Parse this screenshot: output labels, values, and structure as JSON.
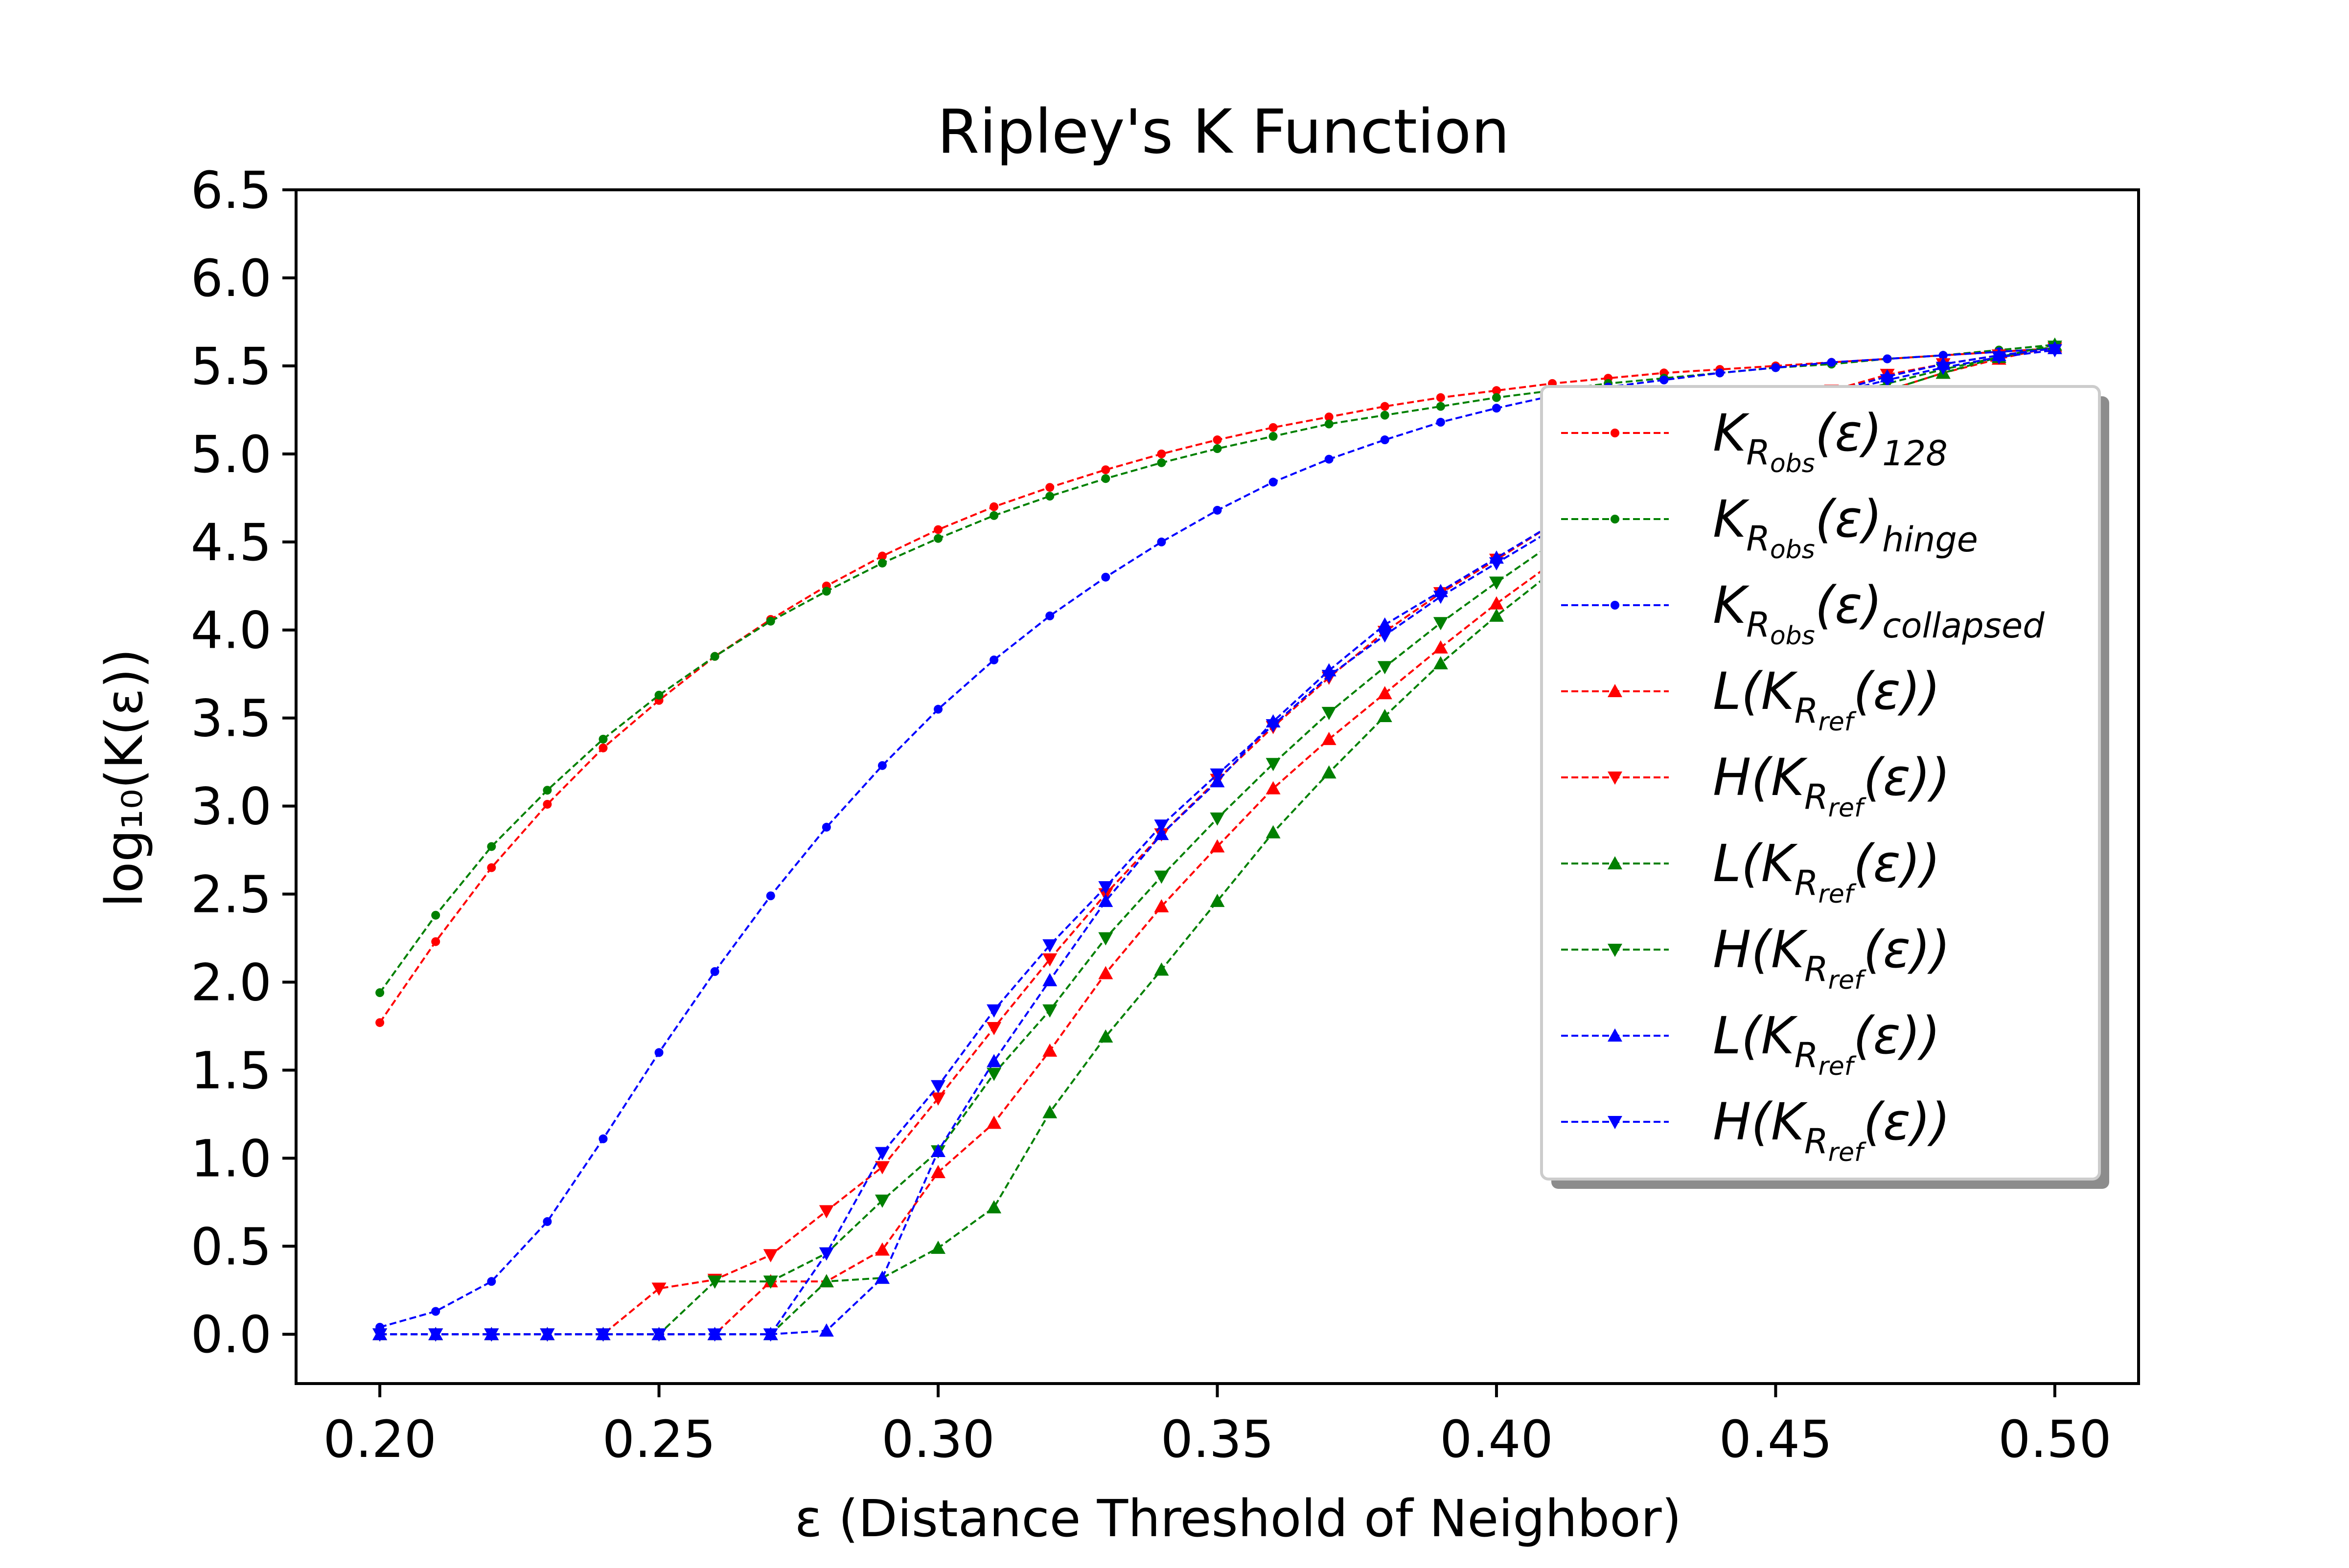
{
  "chart_data": {
    "type": "line",
    "title": "Ripley's K Function",
    "xlabel": "ε (Distance Threshold of Neighbor)",
    "ylabel": "log₁₀(K(ε))",
    "xlim": [
      0.185,
      0.515
    ],
    "ylim": [
      -0.28,
      6.5
    ],
    "xticks": [
      "0.20",
      "0.25",
      "0.30",
      "0.35",
      "0.40",
      "0.45",
      "0.50"
    ],
    "yticks": [
      "0.0",
      "0.5",
      "1.0",
      "1.5",
      "2.0",
      "2.5",
      "3.0",
      "3.5",
      "4.0",
      "4.5",
      "5.0",
      "5.5",
      "6.0",
      "6.5"
    ],
    "grid": false,
    "legend_position": "right",
    "x": [
      0.2,
      0.21,
      0.22,
      0.23,
      0.24,
      0.25,
      0.26,
      0.27,
      0.28,
      0.29,
      0.3,
      0.31,
      0.32,
      0.33,
      0.34,
      0.35,
      0.36,
      0.37,
      0.38,
      0.39,
      0.4,
      0.41,
      0.42,
      0.43,
      0.44,
      0.45,
      0.46,
      0.47,
      0.48,
      0.49,
      0.5
    ],
    "series": [
      {
        "name": "K_Robs(ε)_128",
        "color": "#ff0000",
        "marker": "dot",
        "legend": {
          "main": "K",
          "sub1": "R",
          "sub2": "obs",
          "tail": "(ε)",
          "sub3": "128"
        },
        "values": [
          1.77,
          2.23,
          2.65,
          3.01,
          3.33,
          3.6,
          3.85,
          4.06,
          4.25,
          4.42,
          4.57,
          4.7,
          4.81,
          4.91,
          5.0,
          5.08,
          5.15,
          5.21,
          5.27,
          5.32,
          5.36,
          5.4,
          5.43,
          5.46,
          5.48,
          5.5,
          5.52,
          5.54,
          5.56,
          5.58,
          5.6
        ]
      },
      {
        "name": "K_Robs(ε)_hinge",
        "color": "#008000",
        "marker": "dot",
        "legend": {
          "main": "K",
          "sub1": "R",
          "sub2": "obs",
          "tail": "(ε)",
          "sub3": "hinge"
        },
        "values": [
          1.94,
          2.38,
          2.77,
          3.09,
          3.38,
          3.63,
          3.85,
          4.05,
          4.22,
          4.38,
          4.52,
          4.65,
          4.76,
          4.86,
          4.95,
          5.03,
          5.1,
          5.17,
          5.22,
          5.27,
          5.32,
          5.36,
          5.4,
          5.43,
          5.46,
          5.49,
          5.51,
          5.54,
          5.56,
          5.59,
          5.62
        ]
      },
      {
        "name": "K_Robs(ε)_collapsed",
        "color": "#0000ff",
        "marker": "dot",
        "legend": {
          "main": "K",
          "sub1": "R",
          "sub2": "obs",
          "tail": "(ε)",
          "sub3": "collapsed"
        },
        "values": [
          0.04,
          0.13,
          0.3,
          0.64,
          1.11,
          1.6,
          2.06,
          2.49,
          2.88,
          3.23,
          3.55,
          3.83,
          4.08,
          4.3,
          4.5,
          4.68,
          4.84,
          4.97,
          5.08,
          5.18,
          5.26,
          5.33,
          5.38,
          5.42,
          5.46,
          5.49,
          5.52,
          5.54,
          5.56,
          5.58,
          5.6
        ]
      },
      {
        "name": "L(K_Rref(ε))",
        "color": "#ff0000",
        "marker": "tri-up",
        "legend": {
          "main": "L(K",
          "sub1": "R",
          "sub2": "ref",
          "tail": "(ε))",
          "sub3": ""
        },
        "values": [
          0.0,
          0.0,
          0.0,
          0.0,
          0.0,
          0.0,
          0.0,
          0.3,
          0.3,
          0.48,
          0.92,
          1.2,
          1.61,
          2.05,
          2.43,
          2.77,
          3.1,
          3.38,
          3.64,
          3.9,
          4.15,
          4.38,
          4.6,
          4.8,
          4.98,
          5.13,
          5.26,
          5.36,
          5.46,
          5.54,
          5.61
        ]
      },
      {
        "name": "H(K_Rref(ε))",
        "color": "#ff0000",
        "marker": "tri-down",
        "legend": {
          "main": "H(K",
          "sub1": "R",
          "sub2": "ref",
          "tail": "(ε))",
          "sub3": ""
        },
        "values": [
          0.0,
          0.0,
          0.0,
          0.0,
          0.0,
          0.26,
          0.31,
          0.45,
          0.7,
          0.95,
          1.34,
          1.74,
          2.13,
          2.5,
          2.84,
          3.15,
          3.45,
          3.73,
          3.99,
          4.21,
          4.4,
          4.6,
          4.8,
          4.98,
          5.13,
          5.26,
          5.36,
          5.45,
          5.51,
          5.56,
          5.6
        ]
      },
      {
        "name": "L(K_Rref(ε))",
        "color": "#008000",
        "marker": "tri-up",
        "legend": {
          "main": "L(K",
          "sub1": "R",
          "sub2": "ref",
          "tail": "(ε))",
          "sub3": ""
        },
        "values": [
          0.0,
          0.0,
          0.0,
          0.0,
          0.0,
          0.0,
          0.0,
          0.0,
          0.3,
          0.32,
          0.49,
          0.72,
          1.26,
          1.69,
          2.07,
          2.46,
          2.85,
          3.19,
          3.51,
          3.81,
          4.08,
          4.33,
          4.56,
          4.77,
          4.95,
          5.11,
          5.25,
          5.36,
          5.46,
          5.55,
          5.62
        ]
      },
      {
        "name": "H(K_Rref(ε))",
        "color": "#008000",
        "marker": "tri-down",
        "legend": {
          "main": "H(K",
          "sub1": "R",
          "sub2": "ref",
          "tail": "(ε))",
          "sub3": ""
        },
        "values": [
          0.0,
          0.0,
          0.0,
          0.0,
          0.0,
          0.0,
          0.3,
          0.3,
          0.46,
          0.76,
          1.04,
          1.48,
          1.84,
          2.25,
          2.6,
          2.93,
          3.24,
          3.53,
          3.79,
          4.04,
          4.27,
          4.49,
          4.7,
          4.89,
          5.05,
          5.19,
          5.31,
          5.4,
          5.48,
          5.55,
          5.61
        ]
      },
      {
        "name": "L(K_Rref(ε))",
        "color": "#0000ff",
        "marker": "tri-up",
        "legend": {
          "main": "L(K",
          "sub1": "R",
          "sub2": "ref",
          "tail": "(ε))",
          "sub3": ""
        },
        "values": [
          0.0,
          0.0,
          0.0,
          0.0,
          0.0,
          0.0,
          0.0,
          0.0,
          0.02,
          0.32,
          1.04,
          1.55,
          2.01,
          2.46,
          2.84,
          3.14,
          3.48,
          3.77,
          4.03,
          4.22,
          4.41,
          4.6,
          4.8,
          4.98,
          5.13,
          5.25,
          5.35,
          5.44,
          5.51,
          5.56,
          5.6
        ]
      },
      {
        "name": "H(K_Rref(ε))",
        "color": "#0000ff",
        "marker": "tri-down",
        "legend": {
          "main": "H(K",
          "sub1": "R",
          "sub2": "ref",
          "tail": "(ε))",
          "sub3": ""
        },
        "values": [
          0.0,
          0.0,
          0.0,
          0.0,
          0.0,
          0.0,
          0.0,
          0.0,
          0.46,
          1.03,
          1.41,
          1.84,
          2.21,
          2.54,
          2.89,
          3.18,
          3.46,
          3.74,
          3.97,
          4.19,
          4.38,
          4.57,
          4.77,
          4.95,
          5.1,
          5.24,
          5.34,
          5.42,
          5.49,
          5.55,
          5.59
        ]
      }
    ]
  }
}
